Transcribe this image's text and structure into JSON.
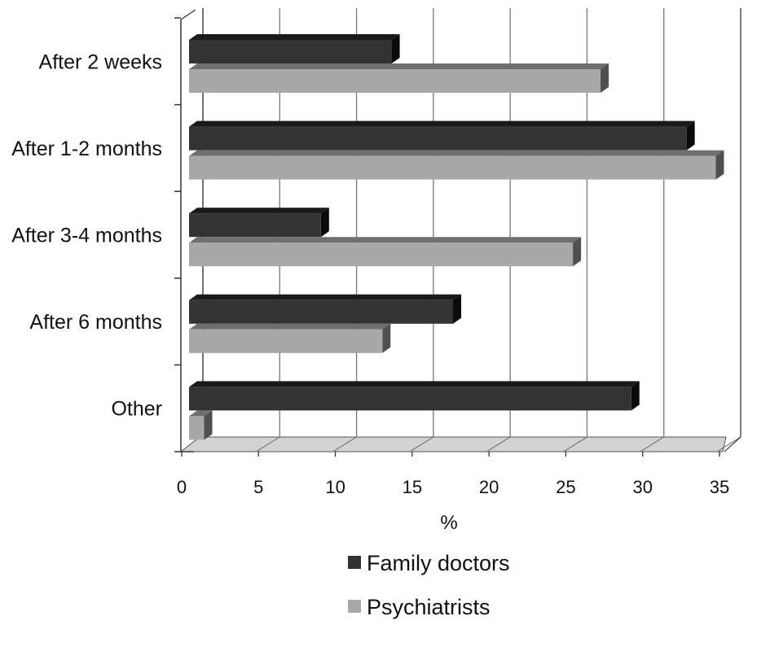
{
  "chart_data": {
    "type": "bar",
    "orientation": "horizontal",
    "style": "3d",
    "categories": [
      "After 2 weeks",
      "After 1-2 months",
      "After 3-4 months",
      "After 6 months",
      "Other"
    ],
    "series": [
      {
        "name": "Family doctors",
        "values": [
          13.5,
          32.7,
          8.9,
          17.5,
          29.1
        ],
        "color": "#333333"
      },
      {
        "name": "Psychiatrists",
        "values": [
          27.1,
          34.6,
          25.3,
          12.9,
          1.3
        ],
        "color": "#a8a8a8"
      }
    ],
    "xlabel": "%",
    "ylabel": "",
    "xlim": [
      0,
      35
    ],
    "xticks": [
      0,
      5,
      10,
      15,
      20,
      25,
      30,
      35
    ],
    "grid": true,
    "legend_position": "bottom"
  }
}
